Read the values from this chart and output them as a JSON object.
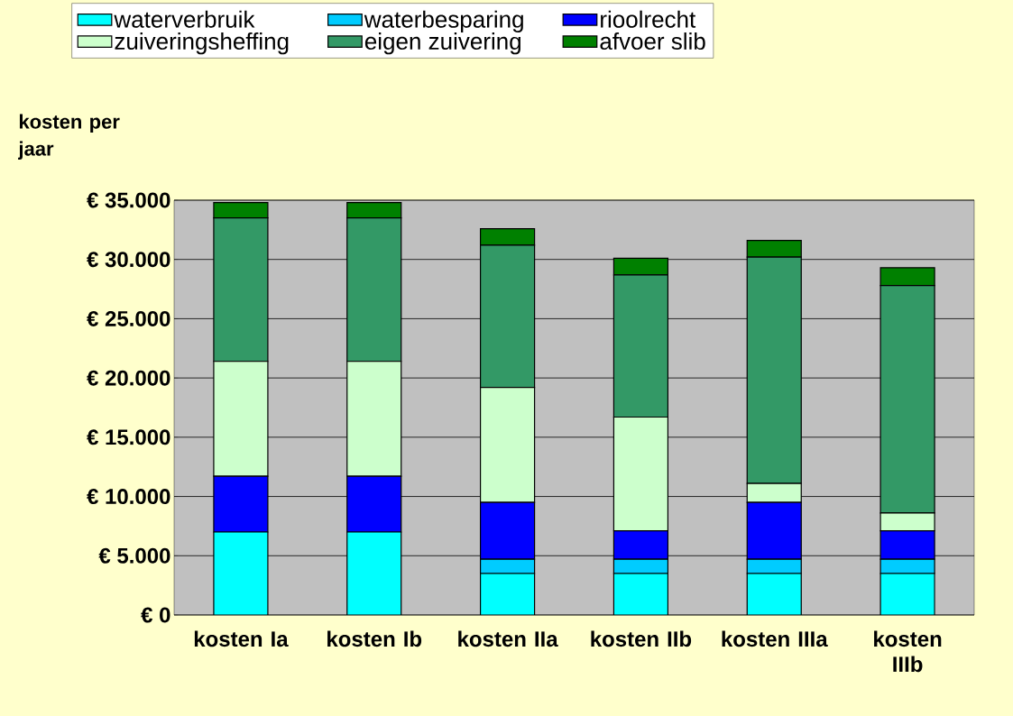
{
  "chart_data": {
    "type": "bar",
    "stacked": true,
    "ylabel": "kosten per jaar",
    "categories": [
      "kosten Ia",
      "kosten Ib",
      "kosten IIa",
      "kosten IIb",
      "kosten IIIa",
      "kosten IIIb"
    ],
    "series": [
      {
        "name": "waterverbruik",
        "color": "#00ffff",
        "values": [
          7000,
          7000,
          3500,
          3500,
          3500,
          3500
        ]
      },
      {
        "name": "waterbesparing",
        "color": "#00ccff",
        "values": [
          0,
          0,
          1200,
          1200,
          1200,
          1200
        ]
      },
      {
        "name": "rioolrecht",
        "color": "#0000ff",
        "values": [
          4700,
          4700,
          4800,
          2400,
          4800,
          2400
        ]
      },
      {
        "name": "zuiveringsheffing",
        "color": "#ccffcc",
        "values": [
          9700,
          9700,
          9700,
          9600,
          1600,
          1500
        ]
      },
      {
        "name": "eigen zuivering",
        "color": "#339966",
        "values": [
          12100,
          12100,
          12000,
          12000,
          19100,
          19200
        ]
      },
      {
        "name": "afvoer slib",
        "color": "#008000",
        "values": [
          1300,
          1300,
          1400,
          1400,
          1400,
          1500
        ]
      }
    ],
    "ylim": [
      0,
      35000
    ],
    "yticks": [
      {
        "value": 0,
        "label": "€ 0"
      },
      {
        "value": 5000,
        "label": "€ 5.000"
      },
      {
        "value": 10000,
        "label": "€ 10.000"
      },
      {
        "value": 15000,
        "label": "€ 15.000"
      },
      {
        "value": 20000,
        "label": "€ 20.000"
      },
      {
        "value": 25000,
        "label": "€ 25.000"
      },
      {
        "value": 30000,
        "label": "€ 30.000"
      },
      {
        "value": 35000,
        "label": "€ 35.000"
      }
    ],
    "grid": "y",
    "legend": "top"
  }
}
